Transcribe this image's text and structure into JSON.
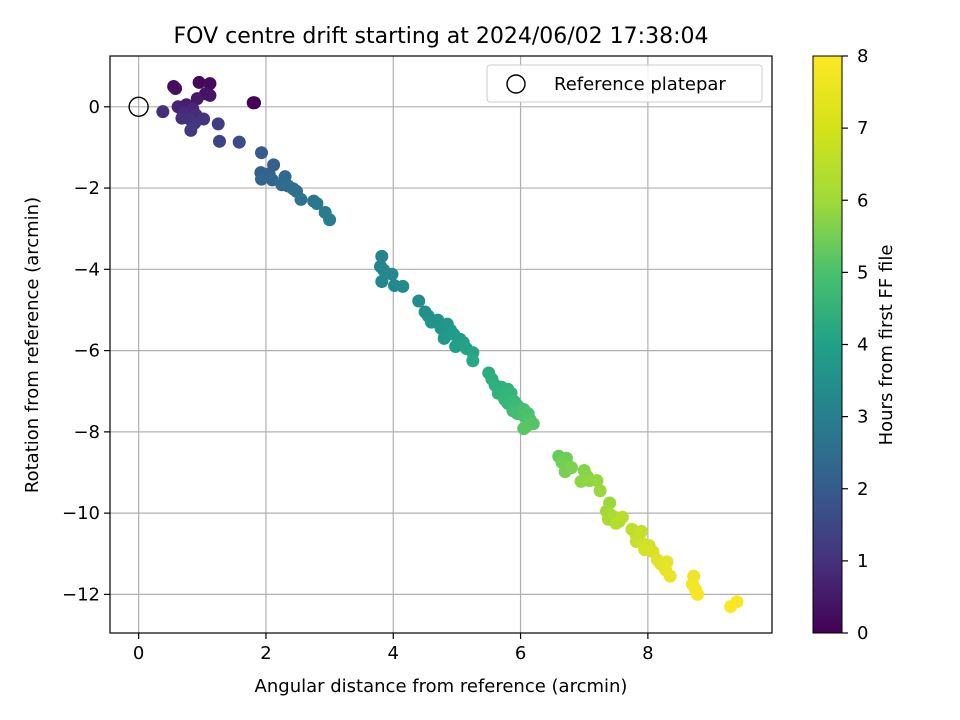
{
  "chart_data": {
    "type": "scatter",
    "title": "FOV centre drift starting at 2024/06/02 17:38:04",
    "xlabel": "Angular distance from reference (arcmin)",
    "ylabel": "Rotation from reference (arcmin)",
    "xlim": [
      -0.45,
      9.95
    ],
    "ylim": [
      -12.95,
      1.25
    ],
    "xticks": [
      0,
      2,
      4,
      6,
      8
    ],
    "yticks": [
      0,
      -2,
      -4,
      -6,
      -8,
      -10,
      -12
    ],
    "xtick_labels": [
      "0",
      "2",
      "4",
      "6",
      "8"
    ],
    "ytick_labels": [
      "0",
      "−2",
      "−4",
      "−6",
      "−8",
      "−10",
      "−12"
    ],
    "grid": true,
    "legend": {
      "position": "top-right",
      "entries": [
        "Reference platepar"
      ]
    },
    "reference_point": {
      "x": 0,
      "y": 0
    },
    "colorbar": {
      "label": "Hours from first FF file",
      "range": [
        0,
        8
      ],
      "ticks": [
        "0",
        "1",
        "2",
        "3",
        "4",
        "5",
        "6",
        "7",
        "8"
      ],
      "colormap": "viridis"
    },
    "points": [
      [
        1.82,
        0.1,
        0.0
      ],
      [
        1.8,
        0.1,
        0.05
      ],
      [
        0.95,
        0.6,
        0.15
      ],
      [
        1.12,
        0.57,
        0.2
      ],
      [
        0.55,
        0.5,
        0.3
      ],
      [
        0.58,
        0.45,
        0.35
      ],
      [
        1.05,
        0.32,
        0.4
      ],
      [
        1.12,
        0.28,
        0.45
      ],
      [
        0.92,
        0.2,
        0.55
      ],
      [
        0.75,
        0.05,
        0.65
      ],
      [
        0.62,
        0.0,
        0.75
      ],
      [
        0.85,
        -0.05,
        0.85
      ],
      [
        0.7,
        -0.15,
        0.9
      ],
      [
        0.9,
        -0.2,
        1.0
      ],
      [
        0.38,
        -0.12,
        1.05
      ],
      [
        0.68,
        -0.28,
        1.1
      ],
      [
        0.8,
        -0.3,
        1.15
      ],
      [
        1.02,
        -0.3,
        1.2
      ],
      [
        0.88,
        -0.4,
        1.25
      ],
      [
        0.82,
        -0.58,
        1.35
      ],
      [
        1.25,
        -0.42,
        1.45
      ],
      [
        1.27,
        -0.85,
        1.6
      ],
      [
        1.58,
        -0.87,
        1.8
      ],
      [
        1.93,
        -1.13,
        2.3
      ],
      [
        2.12,
        -1.43,
        2.4
      ],
      [
        1.92,
        -1.62,
        2.5
      ],
      [
        2.05,
        -1.65,
        2.55
      ],
      [
        1.93,
        -1.78,
        2.6
      ],
      [
        2.1,
        -1.8,
        2.65
      ],
      [
        2.3,
        -1.72,
        2.7
      ],
      [
        2.25,
        -1.92,
        2.75
      ],
      [
        2.35,
        -1.95,
        2.8
      ],
      [
        2.43,
        -2.02,
        2.85
      ],
      [
        2.48,
        -2.08,
        2.9
      ],
      [
        2.55,
        -2.28,
        3.0
      ],
      [
        2.75,
        -2.32,
        3.1
      ],
      [
        2.8,
        -2.38,
        3.2
      ],
      [
        2.93,
        -2.6,
        3.3
      ],
      [
        3.0,
        -2.78,
        3.4
      ],
      [
        3.82,
        -3.68,
        3.6
      ],
      [
        3.8,
        -3.93,
        3.65
      ],
      [
        3.85,
        -4.02,
        3.7
      ],
      [
        3.82,
        -4.3,
        3.72
      ],
      [
        3.98,
        -4.12,
        3.75
      ],
      [
        4.02,
        -4.4,
        3.8
      ],
      [
        4.15,
        -4.42,
        3.85
      ],
      [
        4.4,
        -4.78,
        3.9
      ],
      [
        4.5,
        -5.05,
        3.95
      ],
      [
        4.55,
        -5.15,
        4.0
      ],
      [
        4.7,
        -5.25,
        4.05
      ],
      [
        4.6,
        -5.3,
        4.1
      ],
      [
        4.75,
        -5.45,
        4.15
      ],
      [
        4.85,
        -5.35,
        4.2
      ],
      [
        4.9,
        -5.5,
        4.25
      ],
      [
        4.8,
        -5.7,
        4.3
      ],
      [
        4.95,
        -5.6,
        4.4
      ],
      [
        5.05,
        -5.72,
        4.45
      ],
      [
        4.98,
        -5.9,
        4.5
      ],
      [
        5.1,
        -5.8,
        4.55
      ],
      [
        5.15,
        -5.95,
        4.6
      ],
      [
        5.25,
        -6.05,
        4.7
      ],
      [
        5.25,
        -6.25,
        4.8
      ],
      [
        5.5,
        -6.55,
        4.9
      ],
      [
        5.55,
        -6.7,
        5.0
      ],
      [
        5.6,
        -6.85,
        5.05
      ],
      [
        5.7,
        -6.9,
        5.1
      ],
      [
        5.65,
        -7.05,
        5.15
      ],
      [
        5.8,
        -6.95,
        5.2
      ],
      [
        5.75,
        -7.2,
        5.25
      ],
      [
        5.85,
        -7.05,
        5.3
      ],
      [
        5.8,
        -7.3,
        5.35
      ],
      [
        5.9,
        -7.25,
        5.4
      ],
      [
        5.95,
        -7.35,
        5.45
      ],
      [
        5.88,
        -7.48,
        5.5
      ],
      [
        5.95,
        -7.55,
        5.55
      ],
      [
        6.05,
        -7.45,
        5.6
      ],
      [
        6.05,
        -7.6,
        5.65
      ],
      [
        6.12,
        -7.55,
        5.7
      ],
      [
        6.15,
        -7.7,
        5.75
      ],
      [
        6.1,
        -7.85,
        5.8
      ],
      [
        6.2,
        -7.8,
        5.85
      ],
      [
        6.05,
        -7.92,
        5.9
      ],
      [
        6.6,
        -8.6,
        6.1
      ],
      [
        6.72,
        -8.65,
        6.2
      ],
      [
        6.65,
        -8.75,
        6.25
      ],
      [
        6.75,
        -8.85,
        6.3
      ],
      [
        6.7,
        -8.98,
        6.35
      ],
      [
        6.8,
        -8.88,
        6.4
      ],
      [
        7.0,
        -8.95,
        6.5
      ],
      [
        7.05,
        -9.1,
        6.55
      ],
      [
        6.95,
        -9.22,
        6.6
      ],
      [
        7.08,
        -9.2,
        6.65
      ],
      [
        7.2,
        -9.2,
        6.7
      ],
      [
        7.25,
        -9.45,
        6.75
      ],
      [
        7.4,
        -9.75,
        6.8
      ],
      [
        7.35,
        -9.95,
        6.85
      ],
      [
        7.42,
        -10.05,
        6.9
      ],
      [
        7.38,
        -10.15,
        6.95
      ],
      [
        7.48,
        -10.1,
        7.0
      ],
      [
        7.55,
        -10.2,
        7.05
      ],
      [
        7.5,
        -10.25,
        7.1
      ],
      [
        7.6,
        -10.1,
        7.15
      ],
      [
        7.75,
        -10.4,
        7.2
      ],
      [
        7.82,
        -10.55,
        7.25
      ],
      [
        7.9,
        -10.45,
        7.3
      ],
      [
        7.82,
        -10.7,
        7.35
      ],
      [
        7.92,
        -10.75,
        7.4
      ],
      [
        8.02,
        -10.8,
        7.45
      ],
      [
        7.95,
        -10.9,
        7.5
      ],
      [
        8.08,
        -10.95,
        7.55
      ],
      [
        8.15,
        -11.15,
        7.6
      ],
      [
        8.2,
        -11.25,
        7.65
      ],
      [
        8.3,
        -11.2,
        7.7
      ],
      [
        8.28,
        -11.4,
        7.72
      ],
      [
        8.35,
        -11.55,
        7.75
      ],
      [
        8.72,
        -11.55,
        7.8
      ],
      [
        8.7,
        -11.75,
        7.85
      ],
      [
        8.75,
        -11.88,
        7.9
      ],
      [
        8.78,
        -12.0,
        7.92
      ],
      [
        9.3,
        -12.3,
        7.98
      ],
      [
        9.4,
        -12.18,
        8.0
      ]
    ]
  }
}
